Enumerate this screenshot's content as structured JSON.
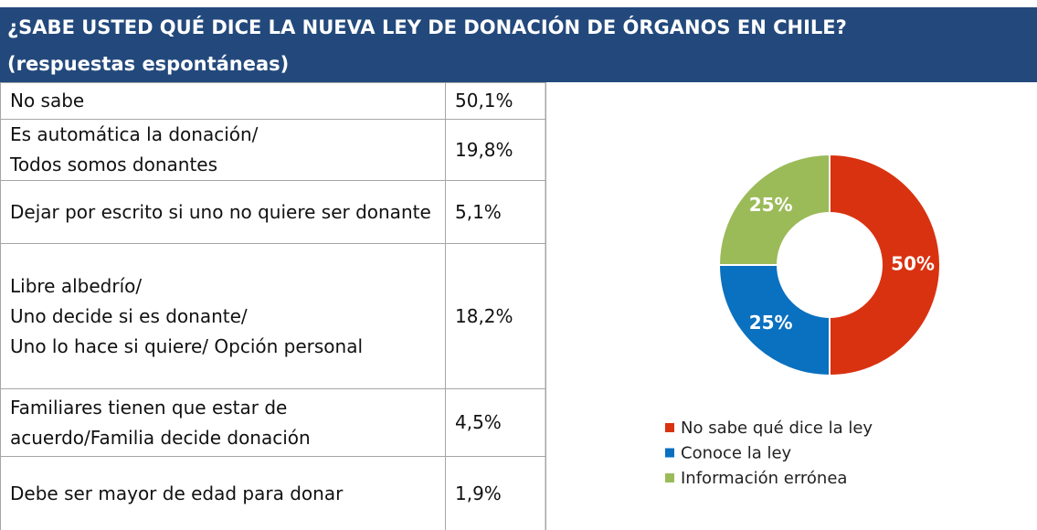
{
  "header": {
    "title": "¿SABE USTED QUÉ DICE LA NUEVA LEY DE DONACIÓN DE ÓRGANOS EN CHILE?",
    "subtitle": "(respuestas espontáneas)"
  },
  "table": {
    "rows": [
      [
        "No sabe",
        "50,1%"
      ],
      [
        "Es automática la donación/\nTodos somos donantes",
        "19,8%"
      ],
      [
        "Dejar por escrito si uno no quiere ser donante",
        "5,1%"
      ],
      [
        "Libre albedrío/\nUno decide si es donante/\nUno lo hace si quiere/ Opción personal",
        "18,2%"
      ],
      [
        "Familiares tienen que estar de acuerdo/Familia decide donación",
        "4,5%"
      ],
      [
        "Debe ser mayor de edad para donar",
        "1,9%"
      ]
    ]
  },
  "chart_data": {
    "type": "pie",
    "donut": true,
    "categories": [
      "No sabe qué dice la ley",
      "Conoce la ley",
      "Información errónea"
    ],
    "values": [
      50,
      25,
      25
    ],
    "value_labels": [
      "50%",
      "25%",
      "25%"
    ],
    "colors": [
      "#d93210",
      "#0a70c0",
      "#9bbb59"
    ],
    "legend": "bottom"
  }
}
